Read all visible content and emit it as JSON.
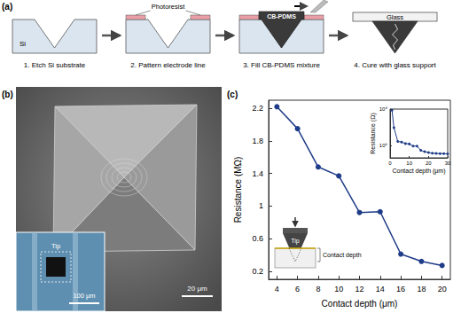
{
  "panel_labels": [
    "(a)",
    "(b)",
    "(c)"
  ],
  "process": {
    "steps": [
      "1. Etch Si substrate",
      "2. Pattern electrode line",
      "3. Fill CB-PDMS mixture",
      "4. Cure with glass support"
    ],
    "labels": {
      "substrate": "Si",
      "photoresist": "Photoresist",
      "mixture": "CB-PDMS",
      "support": "Glass"
    }
  },
  "sem_image": {
    "scale_bar": "20 μm",
    "inset_label": "Tip",
    "inset_scale_bar": "100 μm"
  },
  "schematic": {
    "tip": "Tip",
    "depth": "Contact depth"
  },
  "chart_data": [
    {
      "type": "line",
      "x": [
        4,
        6,
        8,
        10,
        12,
        14,
        16,
        18,
        20
      ],
      "values": [
        2.22,
        1.95,
        1.48,
        1.37,
        0.92,
        0.93,
        0.41,
        0.32,
        0.27
      ],
      "xlabel": "Contact depth (μm)",
      "ylabel": "Resistance (MΩ)",
      "xlim": [
        3.2,
        20.8
      ],
      "xticks": [
        4,
        6,
        8,
        10,
        12,
        14,
        16,
        18,
        20
      ],
      "ylim": [
        0.1,
        2.3
      ],
      "yticks": [
        0.2,
        0.6,
        1,
        1.4,
        1.8,
        2.2
      ],
      "color": "#1f3c88",
      "marker": "circle",
      "grid": false
    },
    {
      "type": "line",
      "x": [
        1,
        2,
        4,
        6,
        8,
        10,
        12,
        14,
        16,
        18,
        20,
        22,
        24,
        26,
        28,
        30
      ],
      "values": [
        800000000,
        30000000,
        2220000,
        1950000,
        1480000,
        1370000,
        920000,
        930000,
        410000,
        320000,
        270000,
        240000,
        230000,
        220000,
        220000,
        210000
      ],
      "xlabel": "Contact depth (μm)",
      "ylabel": "Resistance (Ω)",
      "xlim": [
        0,
        30
      ],
      "xticks": [
        0,
        10,
        20,
        30
      ],
      "ylim": [
        100000,
        1000000000
      ],
      "yticks": [
        {
          "value": 1000000,
          "label": "10⁶"
        },
        {
          "value": 1000000000,
          "label": "10⁹"
        }
      ],
      "log": "y",
      "color": "#1f3c88",
      "marker": "circle",
      "grid": false
    }
  ]
}
